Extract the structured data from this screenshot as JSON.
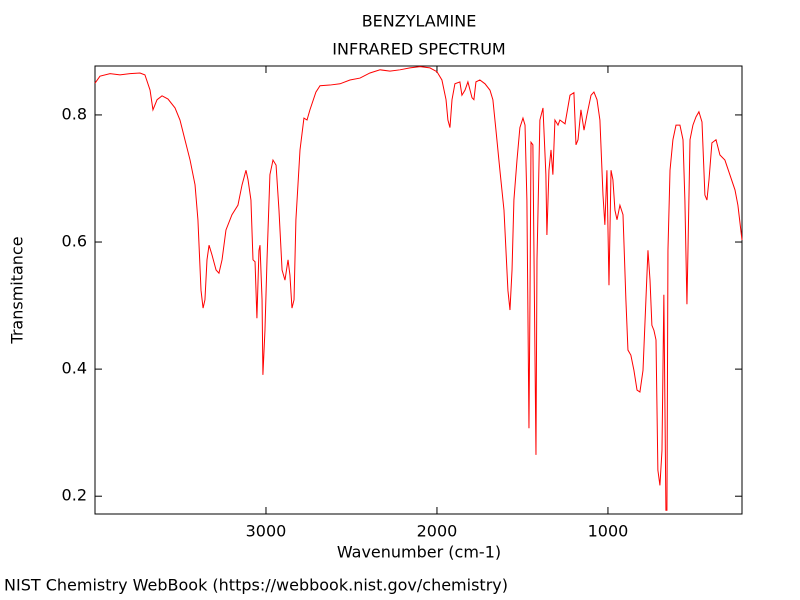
{
  "chart_data": {
    "type": "line",
    "title": "BENZYLAMINE",
    "subtitle": "INFRARED SPECTRUM",
    "x_label": "Wavenumber (cm-1)",
    "y_label": "Transmitance",
    "source": "NIST Chemistry WebBook (https://webbook.nist.gov/chemistry)",
    "color": "#ff0000",
    "grid": false,
    "xlim": [
      4000,
      216
    ],
    "ylim": [
      0.172,
      0.877
    ],
    "xticks": [
      3000,
      2000,
      1000
    ],
    "yticks": [
      0.2,
      0.4,
      0.6,
      0.8
    ],
    "x": [
      4000,
      3971,
      3912,
      3854,
      3795,
      3737,
      3708,
      3678,
      3661,
      3637,
      3608,
      3573,
      3532,
      3503,
      3474,
      3444,
      3415,
      3398,
      3380,
      3368,
      3357,
      3345,
      3333,
      3316,
      3292,
      3275,
      3257,
      3234,
      3199,
      3164,
      3140,
      3117,
      3105,
      3088,
      3076,
      3064,
      3053,
      3041,
      3035,
      3023,
      3018,
      3006,
      2994,
      2977,
      2959,
      2941,
      2924,
      2906,
      2889,
      2871,
      2860,
      2848,
      2836,
      2825,
      2801,
      2778,
      2760,
      2743,
      2708,
      2684,
      2626,
      2567,
      2509,
      2450,
      2392,
      2333,
      2275,
      2216,
      2158,
      2099,
      2041,
      2000,
      1971,
      1947,
      1936,
      1924,
      1912,
      1895,
      1866,
      1854,
      1836,
      1819,
      1795,
      1784,
      1772,
      1749,
      1719,
      1690,
      1673,
      1655,
      1632,
      1608,
      1585,
      1573,
      1561,
      1550,
      1532,
      1515,
      1497,
      1485,
      1474,
      1462,
      1456,
      1450,
      1439,
      1421,
      1415,
      1398,
      1380,
      1363,
      1357,
      1345,
      1333,
      1322,
      1310,
      1292,
      1281,
      1251,
      1222,
      1199,
      1187,
      1175,
      1158,
      1140,
      1123,
      1099,
      1082,
      1064,
      1047,
      1029,
      1018,
      1006,
      994,
      982,
      971,
      959,
      947,
      930,
      912,
      895,
      883,
      866,
      848,
      830,
      813,
      795,
      778,
      766,
      754,
      743,
      731,
      719,
      708,
      696,
      684,
      673,
      661,
      655,
      649,
      637,
      620,
      602,
      579,
      561,
      550,
      538,
      532,
      520,
      503,
      485,
      468,
      450,
      433,
      421,
      409,
      392,
      368,
      345,
      316,
      287,
      257,
      240,
      216
    ],
    "values": [
      0.85,
      0.861,
      0.865,
      0.863,
      0.865,
      0.866,
      0.863,
      0.839,
      0.808,
      0.824,
      0.83,
      0.825,
      0.811,
      0.792,
      0.761,
      0.729,
      0.69,
      0.635,
      0.524,
      0.496,
      0.509,
      0.572,
      0.595,
      0.58,
      0.556,
      0.551,
      0.572,
      0.619,
      0.643,
      0.658,
      0.69,
      0.713,
      0.698,
      0.666,
      0.572,
      0.569,
      0.48,
      0.587,
      0.595,
      0.509,
      0.391,
      0.461,
      0.572,
      0.706,
      0.729,
      0.721,
      0.65,
      0.556,
      0.54,
      0.572,
      0.548,
      0.496,
      0.509,
      0.635,
      0.745,
      0.795,
      0.792,
      0.808,
      0.836,
      0.846,
      0.847,
      0.849,
      0.855,
      0.858,
      0.866,
      0.871,
      0.869,
      0.871,
      0.874,
      0.876,
      0.874,
      0.868,
      0.855,
      0.824,
      0.792,
      0.78,
      0.824,
      0.849,
      0.852,
      0.831,
      0.839,
      0.852,
      0.827,
      0.824,
      0.852,
      0.855,
      0.849,
      0.839,
      0.824,
      0.776,
      0.713,
      0.65,
      0.524,
      0.493,
      0.556,
      0.666,
      0.729,
      0.78,
      0.795,
      0.784,
      0.666,
      0.307,
      0.509,
      0.757,
      0.753,
      0.265,
      0.572,
      0.792,
      0.811,
      0.706,
      0.611,
      0.713,
      0.745,
      0.706,
      0.792,
      0.784,
      0.792,
      0.786,
      0.831,
      0.835,
      0.753,
      0.761,
      0.808,
      0.776,
      0.8,
      0.831,
      0.836,
      0.824,
      0.792,
      0.674,
      0.627,
      0.713,
      0.532,
      0.713,
      0.698,
      0.65,
      0.635,
      0.658,
      0.643,
      0.509,
      0.43,
      0.422,
      0.398,
      0.367,
      0.364,
      0.398,
      0.509,
      0.587,
      0.54,
      0.469,
      0.461,
      0.446,
      0.241,
      0.217,
      0.272,
      0.517,
      0.178,
      0.178,
      0.587,
      0.713,
      0.761,
      0.784,
      0.784,
      0.761,
      0.666,
      0.502,
      0.587,
      0.761,
      0.784,
      0.797,
      0.805,
      0.789,
      0.674,
      0.666,
      0.698,
      0.756,
      0.761,
      0.737,
      0.729,
      0.706,
      0.682,
      0.658,
      0.603
    ]
  }
}
